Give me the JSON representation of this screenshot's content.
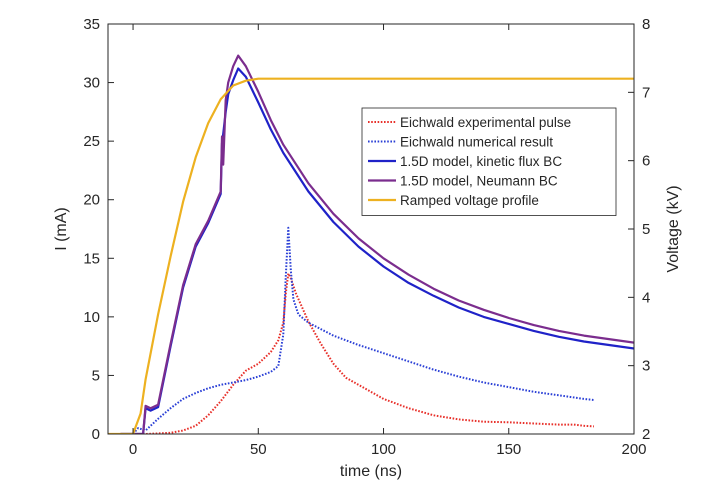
{
  "chart_data": {
    "type": "line",
    "xlabel": "time (ns)",
    "ylabel_left": "I (mA)",
    "ylabel_right": "Voltage (kV)",
    "xlim": [
      -10,
      200
    ],
    "ylim_left": [
      0,
      35
    ],
    "ylim_right": [
      2,
      8
    ],
    "xticks": [
      0,
      50,
      100,
      150,
      200
    ],
    "yticks_left": [
      0,
      5,
      10,
      15,
      20,
      25,
      30,
      35
    ],
    "yticks_right": [
      2,
      3,
      4,
      5,
      6,
      7,
      8
    ],
    "grid": false,
    "legend_position": "right-middle",
    "series": [
      {
        "name": "Eichwald experimental pulse",
        "axis": "left",
        "style": "dotted",
        "color": "#e8302a",
        "x": [
          -5,
          5,
          10,
          15,
          20,
          25,
          30,
          35,
          40,
          45,
          50,
          55,
          58,
          60,
          61,
          62,
          63,
          65,
          70,
          75,
          80,
          85,
          90,
          100,
          110,
          120,
          130,
          140,
          150,
          160,
          170,
          176,
          180,
          184
        ],
        "y": [
          0,
          0,
          0.05,
          0.1,
          0.3,
          0.7,
          1.6,
          2.8,
          4.2,
          5.4,
          6.0,
          7.0,
          8.0,
          9.5,
          12.0,
          13.7,
          13.3,
          12.0,
          9.6,
          7.7,
          6.0,
          4.8,
          4.2,
          3.0,
          2.2,
          1.6,
          1.25,
          1.05,
          1.0,
          0.9,
          0.8,
          0.8,
          0.7,
          0.65
        ]
      },
      {
        "name": "Eichwald numerical result",
        "axis": "left",
        "style": "dotted",
        "color": "#2a3fd6",
        "x": [
          -5,
          0,
          2,
          5,
          10,
          15,
          20,
          25,
          30,
          35,
          40,
          45,
          50,
          55,
          58,
          60,
          61,
          62,
          63,
          64,
          66,
          70,
          80,
          90,
          100,
          110,
          120,
          130,
          140,
          150,
          160,
          170,
          180,
          184
        ],
        "y": [
          0,
          0,
          0.5,
          0.3,
          1.3,
          2.2,
          3.0,
          3.5,
          3.9,
          4.2,
          4.4,
          4.6,
          4.9,
          5.3,
          5.8,
          8.5,
          13.5,
          17.6,
          14.0,
          11.5,
          10.2,
          9.5,
          8.4,
          7.6,
          6.9,
          6.2,
          5.5,
          4.9,
          4.4,
          4.0,
          3.6,
          3.3,
          3.0,
          2.9
        ]
      },
      {
        "name": "1.5D model, kinetic flux BC",
        "axis": "left",
        "style": "solid",
        "color": "#1f22c8",
        "x": [
          -5,
          0,
          4,
          5,
          7,
          10,
          15,
          20,
          25,
          30,
          35,
          35.5,
          36,
          37,
          38,
          40,
          42,
          45,
          50,
          55,
          60,
          70,
          80,
          90,
          100,
          110,
          120,
          130,
          140,
          150,
          160,
          170,
          180,
          190,
          200
        ],
        "y": [
          0,
          0,
          0,
          2.2,
          2.0,
          2.3,
          7.5,
          12.5,
          16.0,
          18.0,
          20.5,
          24.8,
          25.6,
          27.5,
          29.0,
          30.2,
          31.2,
          30.5,
          28.3,
          26.0,
          24.0,
          20.7,
          18.1,
          16.0,
          14.3,
          12.9,
          11.8,
          10.8,
          10.0,
          9.4,
          8.8,
          8.3,
          7.9,
          7.6,
          7.3
        ]
      },
      {
        "name": "1.5D model, Neumann BC",
        "axis": "left",
        "style": "solid",
        "color": "#7b2d8e",
        "x": [
          -5,
          0,
          4,
          5,
          7,
          10,
          15,
          20,
          25,
          30,
          35,
          35.5,
          36,
          37,
          38,
          40,
          42,
          45,
          50,
          55,
          60,
          70,
          80,
          90,
          100,
          110,
          120,
          130,
          140,
          150,
          160,
          170,
          180,
          190,
          200
        ],
        "y": [
          0,
          0,
          0,
          2.4,
          2.2,
          2.5,
          7.7,
          12.7,
          16.2,
          18.2,
          20.7,
          25.4,
          23.0,
          28.5,
          30.0,
          31.4,
          32.3,
          31.4,
          29.2,
          26.8,
          24.7,
          21.4,
          18.8,
          16.7,
          15.0,
          13.6,
          12.4,
          11.4,
          10.6,
          9.9,
          9.3,
          8.8,
          8.4,
          8.1,
          7.8
        ]
      },
      {
        "name": "Ramped voltage profile",
        "axis": "right",
        "style": "solid",
        "color": "#edb120",
        "x": [
          -10,
          0,
          3,
          5,
          10,
          15,
          20,
          25,
          30,
          35,
          40,
          45,
          50,
          55,
          60,
          70,
          80,
          100,
          150,
          200
        ],
        "y": [
          2.0,
          2.0,
          2.3,
          2.8,
          3.75,
          4.6,
          5.4,
          6.05,
          6.55,
          6.9,
          7.1,
          7.17,
          7.2,
          7.2,
          7.2,
          7.2,
          7.2,
          7.2,
          7.2,
          7.2
        ]
      }
    ]
  }
}
